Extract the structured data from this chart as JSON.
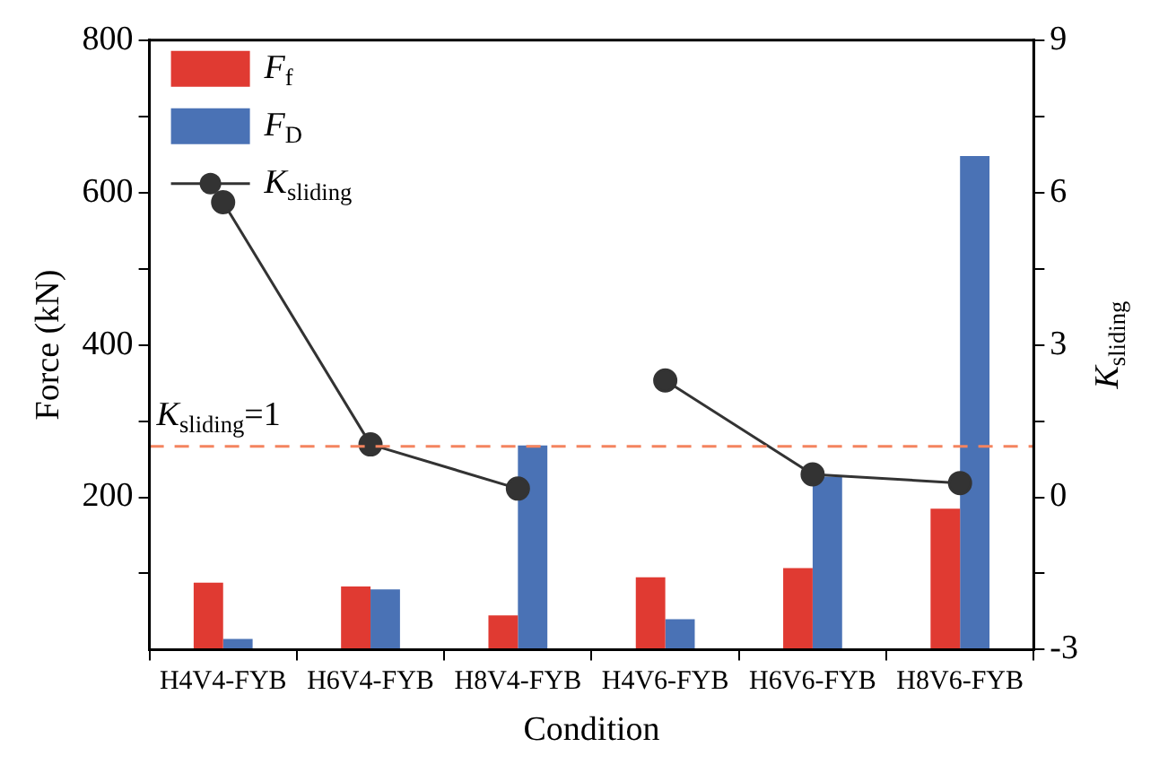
{
  "chart_data": {
    "type": "bar",
    "xlabel": "Condition",
    "ylabel": "Force (kN)",
    "y2label": "K$_{sliding}$",
    "categories": [
      "H4V4-FYB",
      "H6V4-FYB",
      "H8V4-FYB",
      "H4V6-FYB",
      "H6V6-FYB",
      "H8V6-FYB"
    ],
    "series": [
      {
        "name": "F$_{f}$",
        "color": "#e03a32",
        "values": [
          88,
          83,
          45,
          95,
          107,
          185
        ]
      },
      {
        "name": "F$_{D}$",
        "color": "#4a72b5",
        "values": [
          14,
          79,
          268,
          40,
          227,
          648
        ]
      },
      {
        "name": "K$_{sliding}$",
        "type": "line",
        "axis": "y2",
        "color": "#333333",
        "values": [
          5.81,
          1.04,
          0.17,
          null,
          null,
          null
        ]
      },
      {
        "type": "line",
        "axis": "y2",
        "color": "#333333",
        "values": [
          null,
          null,
          null,
          2.3,
          0.45,
          0.28
        ]
      }
    ],
    "ylim": [
      0,
      800
    ],
    "yticks": [
      {
        "value": 100,
        "label": null
      },
      200,
      {
        "value": 300,
        "label": null
      },
      400,
      {
        "value": 500,
        "label": null
      },
      600,
      {
        "value": 700,
        "label": null
      },
      800
    ],
    "y2lim": [
      -3,
      9
    ],
    "y2ticks": [
      -3,
      {
        "value": -1.5,
        "label": null
      },
      0,
      {
        "value": 1.5,
        "label": null
      },
      3,
      {
        "value": 4.5,
        "label": null
      },
      6,
      {
        "value": 7.5,
        "label": null
      },
      9
    ],
    "ref_lines": [
      {
        "axis": "y2",
        "value": 1,
        "label": "K$_{sliding}$=1",
        "color": "#f4845f",
        "line_style": "dashed"
      }
    ],
    "legend": "top left",
    "marker": "circle",
    "grid": false
  }
}
